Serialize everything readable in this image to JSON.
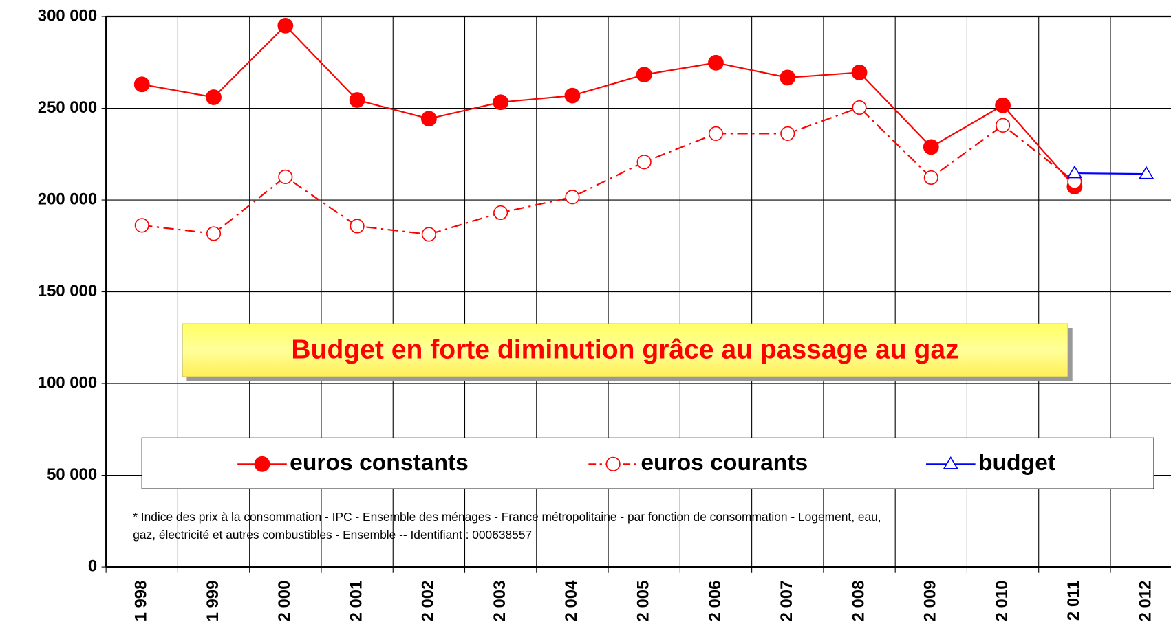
{
  "chart_data": {
    "type": "line",
    "categories": [
      "1 998",
      "1 999",
      "2 000",
      "2 001",
      "2 002",
      "2 003",
      "2 004",
      "2 005",
      "2 006",
      "2 007",
      "2 008",
      "2 009",
      "2 010",
      "2 011",
      "2 012"
    ],
    "series": [
      {
        "name": "euros constants",
        "color": "#ff0000",
        "marker": "filled-circle",
        "dash": "solid",
        "values": [
          263000,
          256000,
          295000,
          254500,
          244300,
          253300,
          256900,
          268300,
          274800,
          266700,
          269500,
          228900,
          251600,
          207300,
          null
        ]
      },
      {
        "name": "euros courants",
        "color": "#ff0000",
        "marker": "open-circle",
        "dash": "dash-dot",
        "values": [
          186200,
          181700,
          212600,
          185800,
          181300,
          193100,
          201600,
          220700,
          236200,
          236200,
          250400,
          212200,
          240700,
          210000,
          null
        ]
      },
      {
        "name": "budget",
        "color": "#0000ff",
        "marker": "open-triangle",
        "dash": "solid",
        "values": [
          null,
          null,
          null,
          null,
          null,
          null,
          null,
          null,
          null,
          null,
          null,
          null,
          null,
          214600,
          214200
        ]
      }
    ],
    "ylim": [
      0,
      300000
    ],
    "yticks": [
      0,
      {
        "value": 50000,
        "label": "50 000"
      },
      {
        "value": 100000,
        "label": "100 000"
      },
      {
        "value": 150000,
        "label": "150 000"
      },
      {
        "value": 200000,
        "label": "200 000"
      },
      {
        "value": 250000,
        "label": "250 000"
      },
      {
        "value": 300000,
        "label": "300 000"
      }
    ],
    "grid": true,
    "annotation": "Budget en forte diminution grâce au passage au gaz",
    "footnote": [
      "* Indice des prix à la consommation - IPC - Ensemble des ménages - France métropolitaine - par fonction de consommation - Logement, eau,",
      "gaz, électricité et autres combustibles - Ensemble -- Identifiant : 000638557"
    ]
  }
}
